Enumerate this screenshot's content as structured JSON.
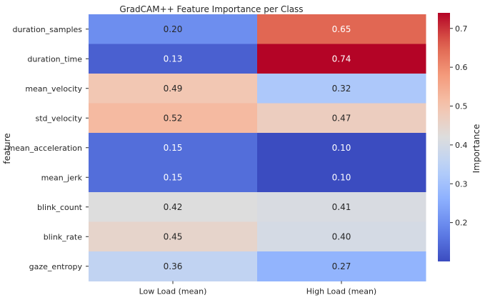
{
  "chart_data": {
    "type": "heatmap",
    "title": "GradCAM++ Feature Importance per Class",
    "ylabel": "feature",
    "xlabel": "",
    "x_categories": [
      "Low Load (mean)",
      "High Load (mean)"
    ],
    "y_categories": [
      "duration_samples",
      "duration_time",
      "mean_velocity",
      "std_velocity",
      "mean_acceleration",
      "mean_jerk",
      "blink_count",
      "blink_rate",
      "gaze_entropy"
    ],
    "values": [
      [
        0.2,
        0.65
      ],
      [
        0.13,
        0.74
      ],
      [
        0.49,
        0.32
      ],
      [
        0.52,
        0.47
      ],
      [
        0.15,
        0.1
      ],
      [
        0.15,
        0.1
      ],
      [
        0.42,
        0.41
      ],
      [
        0.45,
        0.4
      ],
      [
        0.36,
        0.27
      ]
    ],
    "annotation_format": "0.00",
    "colormap": "coolwarm",
    "colorbar": {
      "label": "Importance",
      "range": [
        0.1,
        0.74
      ],
      "ticks": [
        0.2,
        0.3,
        0.4,
        0.5,
        0.6,
        0.7
      ],
      "tick_labels": [
        "0.2",
        "0.3",
        "0.4",
        "0.5",
        "0.6",
        "0.7"
      ]
    }
  }
}
